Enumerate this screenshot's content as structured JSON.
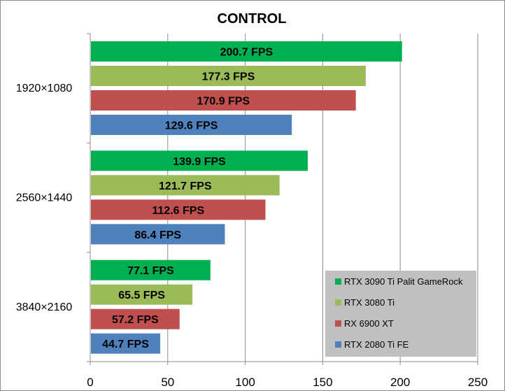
{
  "chart_data": {
    "type": "bar",
    "orientation": "horizontal",
    "title": "CONTROL",
    "categories": [
      "1920×1080",
      "2560×1440",
      "3840×2160"
    ],
    "series": [
      {
        "name": "RTX 3090 Ti Palit GameRock",
        "color": "#00b050",
        "values": [
          200.7,
          139.9,
          77.1
        ],
        "labels": [
          "200.7 FPS",
          "139.9 FPS",
          "77.1 FPS"
        ]
      },
      {
        "name": "RTX 3080 Ti",
        "color": "#9bbb59",
        "values": [
          177.3,
          121.7,
          65.5
        ],
        "labels": [
          "177.3 FPS",
          "121.7 FPS",
          "65.5 FPS"
        ]
      },
      {
        "name": "RX 6900 XT",
        "color": "#c0504d",
        "values": [
          170.9,
          112.6,
          57.2
        ],
        "labels": [
          "170.9 FPS",
          "112.6 FPS",
          "57.2 FPS"
        ]
      },
      {
        "name": "RTX 2080 Ti FE",
        "color": "#4f81bd",
        "values": [
          129.6,
          86.4,
          44.7
        ],
        "labels": [
          "129.6 FPS",
          "86.4 FPS",
          "44.7 FPS"
        ]
      }
    ],
    "xlim": [
      0,
      250
    ],
    "xticks": [
      "0",
      "50",
      "100",
      "150",
      "200",
      "250"
    ],
    "grid": "vertical",
    "legend_position": "bottom-right"
  }
}
